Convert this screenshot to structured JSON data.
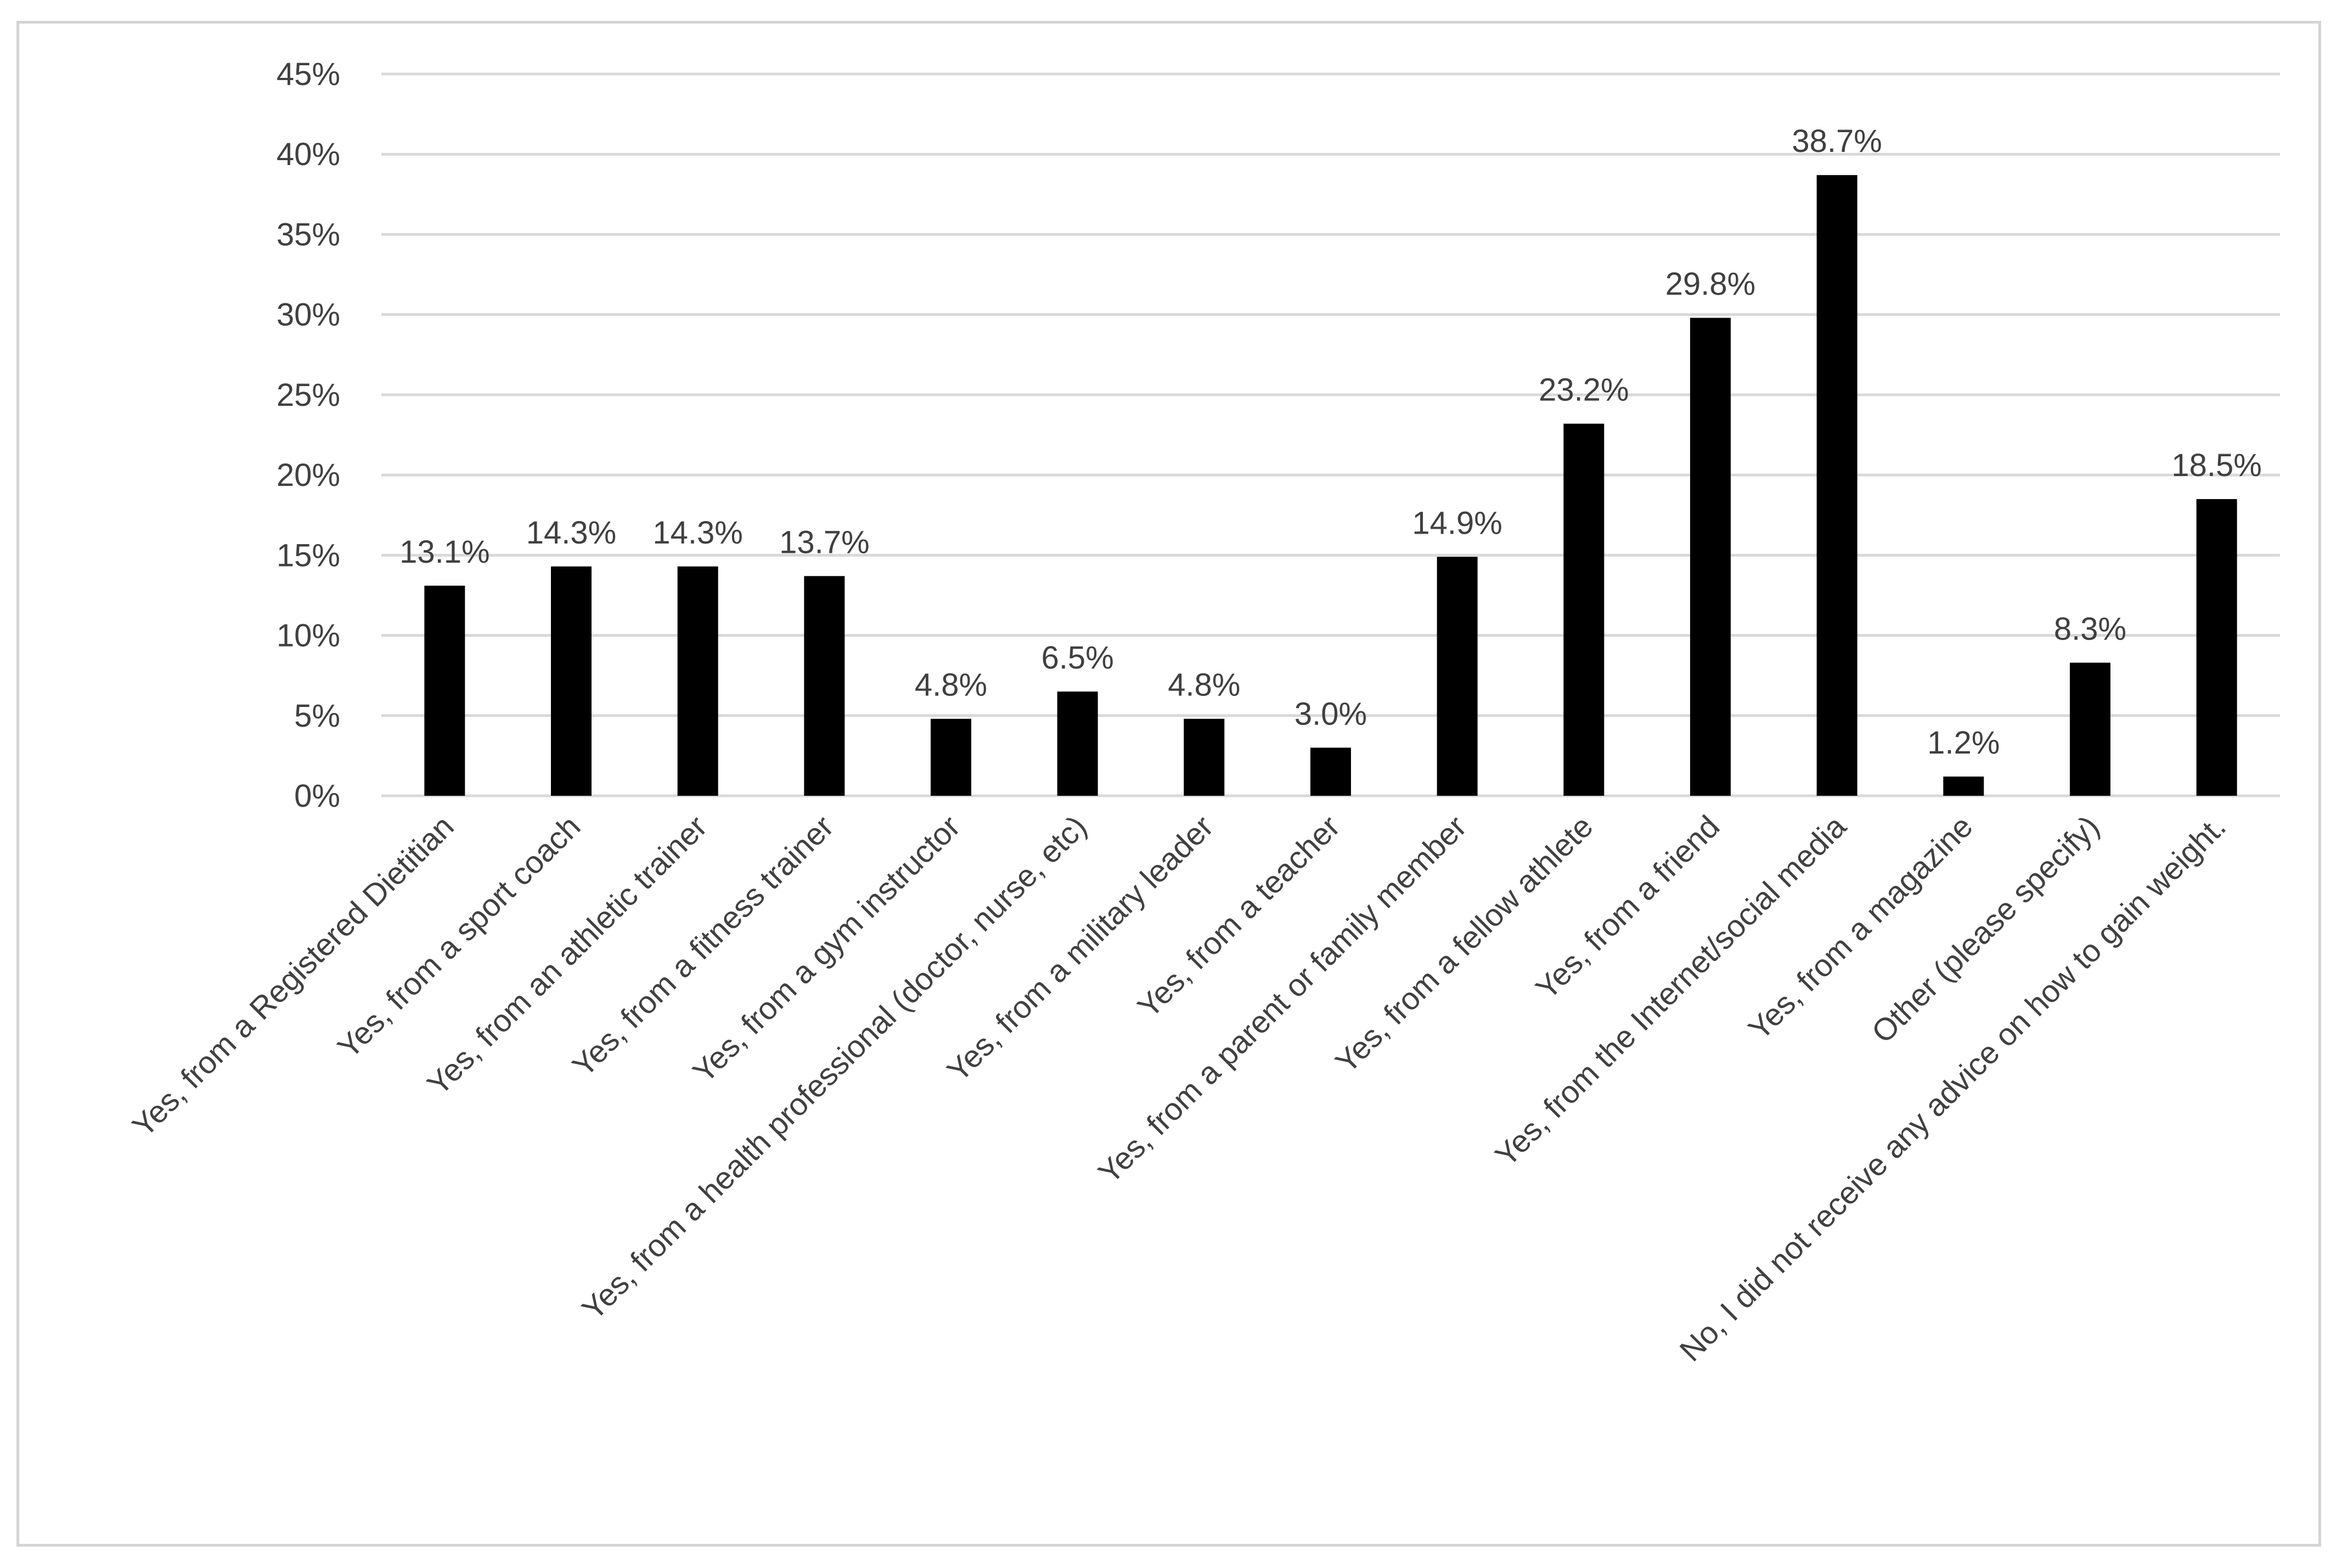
{
  "chart_data": {
    "type": "bar",
    "categories": [
      "Yes, from a Registered Dietitian",
      "Yes, from a sport coach",
      "Yes, from an athletic trainer",
      "Yes, from a fitness trainer",
      "Yes, from a gym instructor",
      "Yes, from a health professional (doctor, nurse, etc)",
      "Yes, from a military leader",
      "Yes, from a teacher",
      "Yes, from a parent or family member",
      "Yes, from a fellow athlete",
      "Yes, from a friend",
      "Yes, from the Internet/social media",
      "Yes, from a magazine",
      "Other (please specify)",
      "No, I did not receive any advice on how to gain weight."
    ],
    "values": [
      13.1,
      14.3,
      14.3,
      13.7,
      4.8,
      6.5,
      4.8,
      3.0,
      14.9,
      23.2,
      29.8,
      38.7,
      1.2,
      8.3,
      18.5
    ],
    "data_labels": [
      "13.1%",
      "14.3%",
      "14.3%",
      "13.7%",
      "4.8%",
      "6.5%",
      "4.8%",
      "3.0%",
      "14.9%",
      "23.2%",
      "29.8%",
      "38.7%",
      "1.2%",
      "8.3%",
      "18.5%"
    ],
    "y_ticks": [
      0,
      5,
      10,
      15,
      20,
      25,
      30,
      35,
      40,
      45
    ],
    "y_tick_labels": [
      "0%",
      "5%",
      "10%",
      "15%",
      "20%",
      "25%",
      "30%",
      "35%",
      "40%",
      "45%"
    ],
    "ylim": [
      0,
      45
    ],
    "grid": true,
    "legend": "none",
    "title": "",
    "xlabel": "",
    "ylabel": "",
    "colors": {
      "bar": "#000000",
      "grid": "#d9d9d9",
      "text": "#404040",
      "border": "#d4d4d4"
    }
  }
}
